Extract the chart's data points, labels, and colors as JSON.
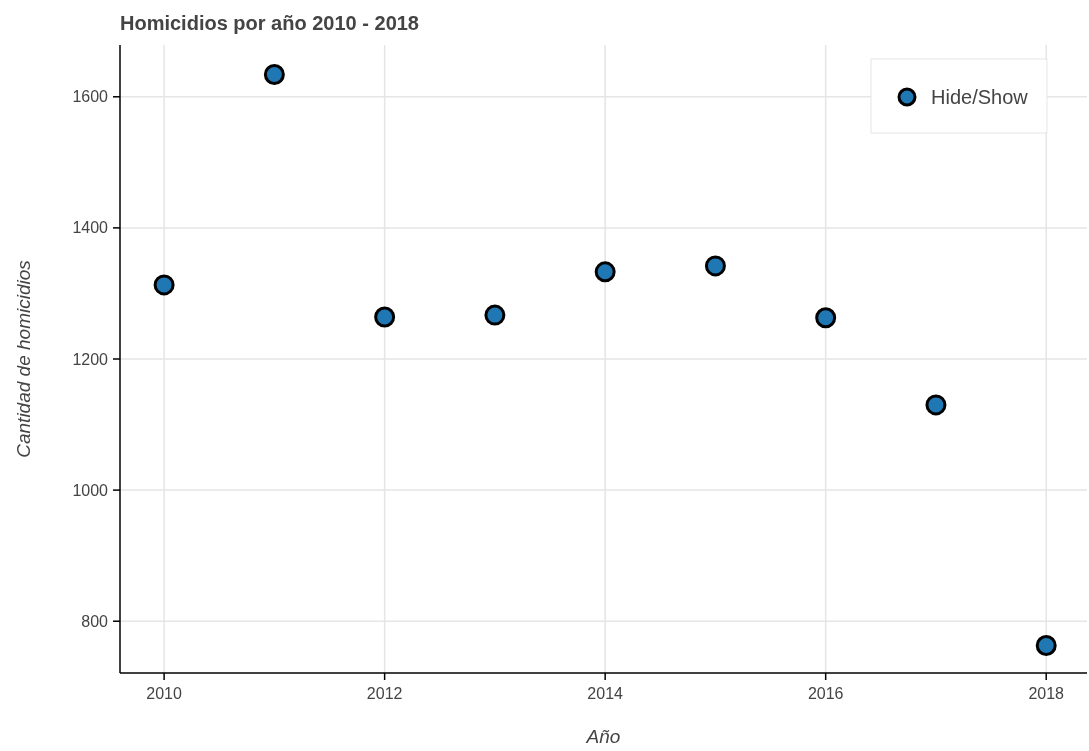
{
  "chart_data": {
    "type": "scatter",
    "title": "Homicidios por año 2010 - 2018",
    "xlabel": "Año",
    "ylabel": "Cantidad de homicidios",
    "x": [
      2010,
      2011,
      2012,
      2013,
      2014,
      2015,
      2016,
      2017,
      2018
    ],
    "series": [
      {
        "name": "Hide/Show",
        "color": "#1f77b4",
        "values": [
          1313,
          1634,
          1264,
          1267,
          1333,
          1342,
          1263,
          1130,
          763
        ]
      }
    ],
    "xlim": [
      2009.6,
      2018.37
    ],
    "xticks": [
      2010,
      2012,
      2014,
      2016,
      2018
    ],
    "ylim": [
      721,
      1679
    ],
    "yticks": [
      800,
      1000,
      1200,
      1400,
      1600
    ],
    "grid": true,
    "legend": "top right",
    "marker": "circle"
  }
}
